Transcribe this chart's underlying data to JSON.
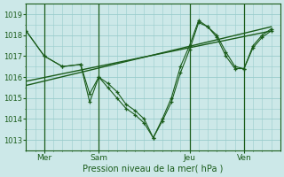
{
  "title": "Pression niveau de la mer( hPa )",
  "bg_color": "#cce8e8",
  "grid_color": "#99cccc",
  "line_color": "#1a5c1a",
  "ylim": [
    1012.5,
    1019.5
  ],
  "yticks": [
    1013,
    1014,
    1015,
    1016,
    1017,
    1018,
    1019
  ],
  "day_labels": [
    "Mer",
    "Sam",
    "Jeu",
    "Ven"
  ],
  "day_positions": [
    1,
    4,
    9,
    12
  ],
  "day_vlines": [
    1,
    4,
    9,
    12
  ],
  "xlim": [
    0,
    14
  ],
  "line1_x": [
    0,
    1,
    2,
    3,
    3.5,
    4,
    4.5,
    5,
    5.5,
    6,
    6.5,
    7,
    7.5,
    8,
    8.5,
    9,
    9.5,
    10,
    10.5,
    11,
    11.5,
    12,
    12.5,
    13,
    13.5
  ],
  "line1_y": [
    1018.2,
    1017.0,
    1016.5,
    1016.6,
    1014.8,
    1016.0,
    1015.7,
    1015.3,
    1014.7,
    1014.4,
    1014.0,
    1013.1,
    1014.0,
    1015.0,
    1016.5,
    1017.5,
    1018.7,
    1018.4,
    1018.0,
    1017.2,
    1016.5,
    1016.4,
    1017.5,
    1018.0,
    1018.3
  ],
  "line2_x": [
    0,
    1,
    2,
    3,
    3.5,
    4,
    4.5,
    5,
    5.5,
    6,
    6.5,
    7,
    7.5,
    8,
    8.5,
    9,
    9.5,
    10,
    10.5,
    11,
    11.5,
    12,
    12.5,
    13,
    13.5
  ],
  "line2_y": [
    1018.2,
    1017.0,
    1016.5,
    1016.6,
    1015.2,
    1016.0,
    1015.5,
    1015.0,
    1014.5,
    1014.2,
    1013.8,
    1013.1,
    1013.9,
    1014.8,
    1016.2,
    1017.3,
    1018.6,
    1018.4,
    1017.9,
    1017.0,
    1016.4,
    1016.4,
    1017.4,
    1017.9,
    1018.2
  ],
  "trend1_x": [
    0,
    13.5
  ],
  "trend1_y": [
    1015.8,
    1018.2
  ],
  "trend2_x": [
    0,
    13.5
  ],
  "trend2_y": [
    1015.6,
    1018.4
  ]
}
